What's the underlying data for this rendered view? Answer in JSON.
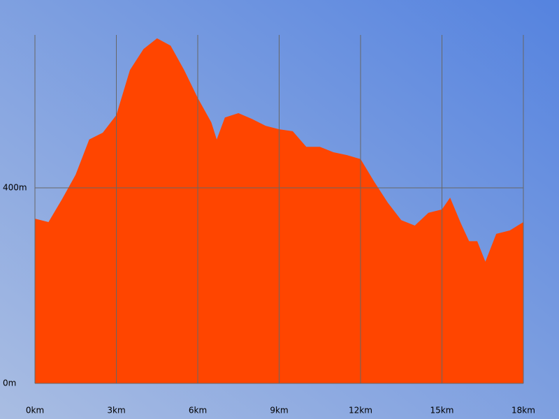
{
  "chart_data": {
    "type": "area",
    "x": [
      0,
      0.5,
      1,
      1.5,
      2,
      2.5,
      3,
      3.5,
      4,
      4.5,
      5,
      5.5,
      6,
      6.5,
      6.7,
      7,
      7.5,
      8,
      8.5,
      9,
      9.5,
      10,
      10.5,
      11,
      11.5,
      12,
      12.5,
      13,
      13.5,
      14,
      14.5,
      15,
      15.3,
      15.7,
      16,
      16.3,
      16.6,
      17,
      17.5,
      18
    ],
    "values": [
      337,
      330,
      377,
      427,
      499,
      513,
      549,
      641,
      684,
      706,
      691,
      641,
      584,
      534,
      499,
      544,
      553,
      541,
      527,
      520,
      516,
      484,
      484,
      473,
      467,
      459,
      413,
      370,
      334,
      323,
      349,
      356,
      380,
      327,
      291,
      291,
      249,
      306,
      313,
      330
    ],
    "color": "#ff4500",
    "xlim": [
      0,
      18
    ],
    "xticks": [
      {
        "value": 0,
        "label": "0km"
      },
      {
        "value": 3,
        "label": "3km"
      },
      {
        "value": 6,
        "label": "6km"
      },
      {
        "value": 9,
        "label": "9km"
      },
      {
        "value": 12,
        "label": "12km"
      },
      {
        "value": 15,
        "label": "15km"
      },
      {
        "value": 18,
        "label": "18km"
      }
    ],
    "ylim": [
      0,
      713
    ],
    "yticks": [
      {
        "value": 0,
        "label": "0m"
      },
      {
        "value": 400,
        "label": "400m"
      }
    ],
    "grid": true
  }
}
